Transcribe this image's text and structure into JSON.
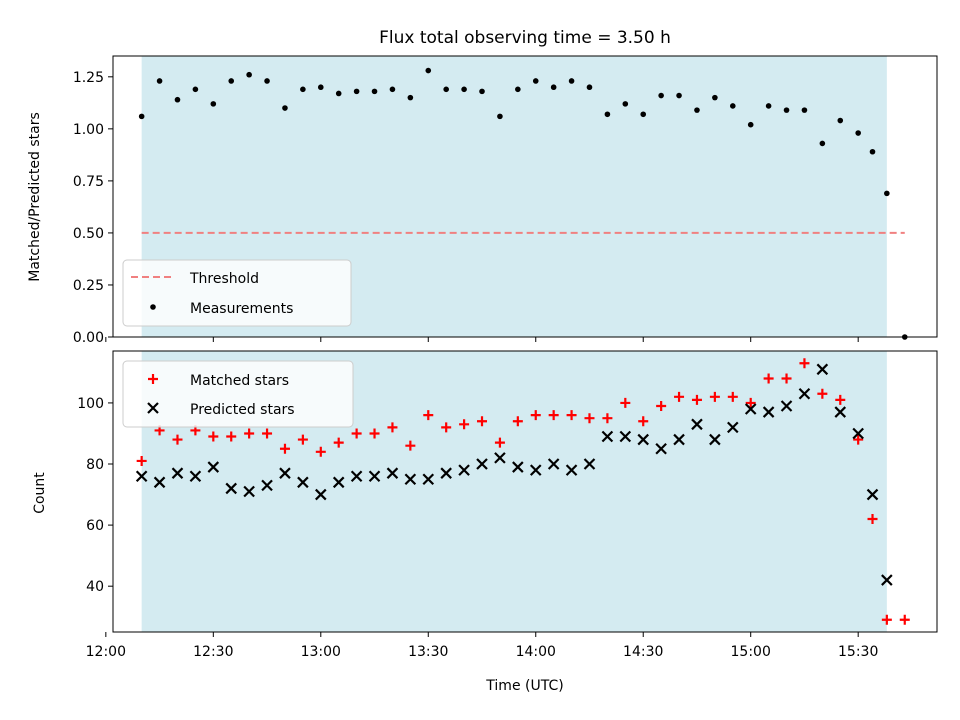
{
  "chart_data": [
    {
      "type": "scatter",
      "title": "Flux total observing time = 3.50 h",
      "xlabel": "",
      "ylabel": "Matched/Predicted stars",
      "ylim": [
        0,
        1.35
      ],
      "yticks": [
        "0.00",
        "0.25",
        "0.50",
        "0.75",
        "1.00",
        "1.25"
      ],
      "shaded_span": [
        "12:10",
        "15:38"
      ],
      "shade_color": "#d4ebf1",
      "threshold": {
        "name": "Threshold",
        "value": 0.5,
        "x_range": [
          "12:10",
          "15:43"
        ],
        "color": "#f08080"
      },
      "legend": {
        "position": "lower-left",
        "entries": [
          "Threshold",
          "Measurements"
        ]
      },
      "series": [
        {
          "name": "Measurements",
          "marker": "dot",
          "color": "#000000",
          "x": [
            "12:10",
            "12:15",
            "12:20",
            "12:25",
            "12:30",
            "12:35",
            "12:40",
            "12:45",
            "12:50",
            "12:55",
            "13:00",
            "13:05",
            "13:10",
            "13:15",
            "13:20",
            "13:25",
            "13:30",
            "13:35",
            "13:40",
            "13:45",
            "13:50",
            "13:55",
            "14:00",
            "14:05",
            "14:10",
            "14:15",
            "14:20",
            "14:25",
            "14:30",
            "14:35",
            "14:40",
            "14:45",
            "14:50",
            "14:55",
            "15:00",
            "15:05",
            "15:10",
            "15:15",
            "15:20",
            "15:25",
            "15:30",
            "15:34",
            "15:38",
            "15:43"
          ],
          "values": [
            1.06,
            1.23,
            1.14,
            1.19,
            1.12,
            1.23,
            1.26,
            1.23,
            1.1,
            1.19,
            1.2,
            1.17,
            1.18,
            1.18,
            1.19,
            1.15,
            1.28,
            1.19,
            1.19,
            1.18,
            1.06,
            1.19,
            1.23,
            1.2,
            1.23,
            1.2,
            1.07,
            1.12,
            1.07,
            1.16,
            1.16,
            1.09,
            1.15,
            1.11,
            1.02,
            1.11,
            1.09,
            1.09,
            0.93,
            1.04,
            0.98,
            0.89,
            0.69,
            0.0
          ]
        }
      ]
    },
    {
      "type": "scatter",
      "title": "",
      "xlabel": "Time (UTC)",
      "ylabel": "Count",
      "ylim": [
        25,
        117
      ],
      "yticks": [
        "40",
        "60",
        "80",
        "100"
      ],
      "xlim": [
        "12:02",
        "15:52"
      ],
      "xticks": [
        "12:00",
        "12:30",
        "13:00",
        "13:30",
        "14:00",
        "14:30",
        "15:00",
        "15:30"
      ],
      "shaded_span": [
        "12:10",
        "15:38"
      ],
      "shade_color": "#d4ebf1",
      "legend": {
        "position": "upper-left",
        "entries": [
          "Matched stars",
          "Predicted stars"
        ]
      },
      "series": [
        {
          "name": "Matched stars",
          "marker": "plus",
          "color": "#ff0000",
          "x": [
            "12:10",
            "12:15",
            "12:20",
            "12:25",
            "12:30",
            "12:35",
            "12:40",
            "12:45",
            "12:50",
            "12:55",
            "13:00",
            "13:05",
            "13:10",
            "13:15",
            "13:20",
            "13:25",
            "13:30",
            "13:35",
            "13:40",
            "13:45",
            "13:50",
            "13:55",
            "14:00",
            "14:05",
            "14:10",
            "14:15",
            "14:20",
            "14:25",
            "14:30",
            "14:35",
            "14:40",
            "14:45",
            "14:50",
            "14:55",
            "15:00",
            "15:05",
            "15:10",
            "15:15",
            "15:20",
            "15:25",
            "15:30",
            "15:34",
            "15:38",
            "15:43"
          ],
          "values": [
            81,
            91,
            88,
            91,
            89,
            89,
            90,
            90,
            85,
            88,
            84,
            87,
            90,
            90,
            92,
            86,
            96,
            92,
            93,
            94,
            87,
            94,
            96,
            96,
            96,
            95,
            95,
            100,
            94,
            99,
            102,
            101,
            102,
            102,
            100,
            108,
            108,
            113,
            103,
            101,
            88,
            62,
            29,
            29
          ]
        },
        {
          "name": "Predicted stars",
          "marker": "x",
          "color": "#000000",
          "x": [
            "12:10",
            "12:15",
            "12:20",
            "12:25",
            "12:30",
            "12:35",
            "12:40",
            "12:45",
            "12:50",
            "12:55",
            "13:00",
            "13:05",
            "13:10",
            "13:15",
            "13:20",
            "13:25",
            "13:30",
            "13:35",
            "13:40",
            "13:45",
            "13:50",
            "13:55",
            "14:00",
            "14:05",
            "14:10",
            "14:15",
            "14:20",
            "14:25",
            "14:30",
            "14:35",
            "14:40",
            "14:45",
            "14:50",
            "14:55",
            "15:00",
            "15:05",
            "15:10",
            "15:15",
            "15:20",
            "15:25",
            "15:30",
            "15:34",
            "15:38"
          ],
          "values": [
            76,
            74,
            77,
            76,
            79,
            72,
            71,
            73,
            77,
            74,
            70,
            74,
            76,
            76,
            77,
            75,
            75,
            77,
            78,
            80,
            82,
            79,
            78,
            80,
            78,
            80,
            89,
            89,
            88,
            85,
            88,
            93,
            88,
            92,
            98,
            97,
            99,
            103,
            111,
            97,
            90,
            70,
            42
          ]
        }
      ]
    }
  ]
}
